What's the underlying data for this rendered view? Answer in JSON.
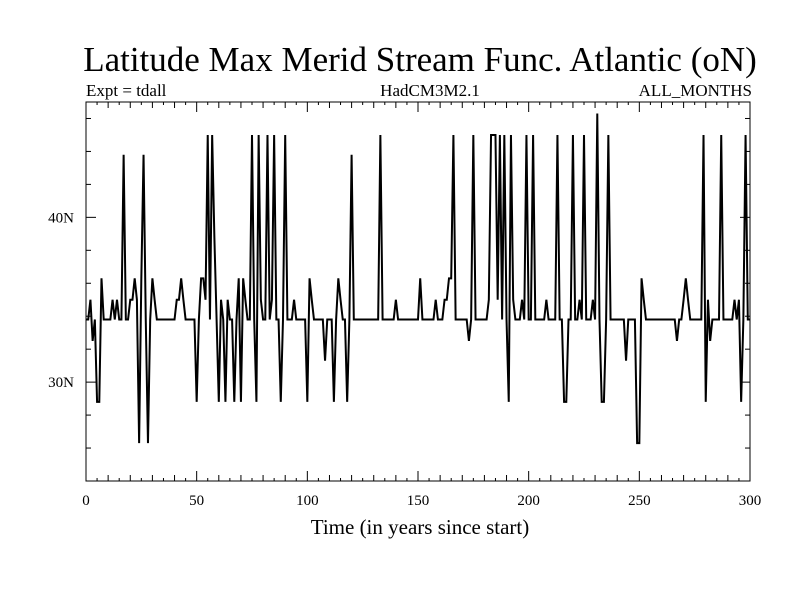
{
  "chart_data": {
    "type": "line",
    "title": "Latitude Max Merid Stream Func. Atlantic (oN)",
    "subtitle_left": "Expt = tdall",
    "subtitle_center": "HadCM3M2.1",
    "subtitle_right": "ALL_MONTHS",
    "xlabel": "Time (in years since start)",
    "ylabel": "",
    "xlim": [
      0,
      300
    ],
    "ylim": [
      24,
      47
    ],
    "x_ticks": [
      0,
      50,
      100,
      150,
      200,
      250,
      300
    ],
    "x_tick_labels": [
      "0",
      "50",
      "100",
      "150",
      "200",
      "250",
      "300"
    ],
    "y_ticks": [
      30,
      40
    ],
    "y_tick_labels": [
      "30N",
      "40N"
    ],
    "grid": false,
    "line_color": "#000000",
    "series": [
      {
        "x": [
          0,
          1,
          2,
          3,
          4,
          5,
          6,
          7,
          8,
          9,
          10,
          11,
          12,
          13,
          14,
          15,
          16,
          17,
          18,
          19,
          20,
          21,
          22,
          23,
          24,
          25,
          26,
          27,
          28,
          29,
          30,
          31,
          32,
          33,
          34,
          35,
          36,
          37,
          38,
          39,
          40,
          41,
          42,
          43,
          44,
          45,
          46,
          47,
          48,
          49,
          50,
          51,
          52,
          53,
          54,
          55,
          56,
          57,
          58,
          59,
          60,
          61,
          62,
          63,
          64,
          65,
          66,
          67,
          68,
          69,
          70,
          71,
          72,
          73,
          74,
          75,
          76,
          77,
          78,
          79,
          80,
          81,
          82,
          83,
          84,
          85,
          86,
          87,
          88,
          89,
          90,
          91,
          92,
          93,
          94,
          95,
          96,
          97,
          98,
          99,
          100,
          101,
          102,
          103,
          104,
          105,
          106,
          107,
          108,
          109,
          110,
          111,
          112,
          113,
          114,
          115,
          116,
          117,
          118,
          119,
          120,
          121,
          122,
          123,
          124,
          125,
          126,
          127,
          128,
          129,
          130,
          131,
          132,
          133,
          134,
          135,
          136,
          137,
          138,
          139,
          140,
          141,
          142,
          143,
          144,
          145,
          146,
          147,
          148,
          149,
          150,
          151,
          152,
          153,
          154,
          155,
          156,
          157,
          158,
          159,
          160,
          161,
          162,
          163,
          164,
          165,
          166,
          167,
          168,
          169,
          170,
          171,
          172,
          173,
          174,
          175,
          176,
          177,
          178,
          179,
          180,
          181,
          182,
          183,
          184,
          185,
          186,
          187,
          188,
          189,
          190,
          191,
          192,
          193,
          194,
          195,
          196,
          197,
          198,
          199,
          200,
          201,
          202,
          203,
          204,
          205,
          206,
          207,
          208,
          209,
          210,
          211,
          212,
          213,
          214,
          215,
          216,
          217,
          218,
          219,
          220,
          221,
          222,
          223,
          224,
          225,
          226,
          227,
          228,
          229,
          230,
          231,
          232,
          233,
          234,
          235,
          236,
          237,
          238,
          239,
          240,
          241,
          242,
          243,
          244,
          245,
          246,
          247,
          248,
          249,
          250,
          251,
          252,
          253,
          254,
          255,
          256,
          257,
          258,
          259,
          260,
          261,
          262,
          263,
          264,
          265,
          266,
          267,
          268,
          269,
          270,
          271,
          272,
          273,
          274,
          275,
          276,
          277,
          278,
          279,
          280,
          281,
          282,
          283,
          284,
          285,
          286,
          287,
          288,
          289,
          290,
          291,
          292,
          293,
          294,
          295,
          296,
          297,
          298,
          299,
          300
        ],
        "y": [
          33.8,
          33.8,
          35.0,
          32.5,
          33.8,
          28.8,
          28.8,
          36.3,
          33.8,
          33.8,
          33.8,
          33.8,
          35.0,
          33.8,
          35.0,
          33.8,
          33.8,
          43.8,
          33.8,
          33.8,
          35.0,
          35.0,
          36.3,
          35.0,
          26.3,
          36.3,
          43.8,
          33.8,
          26.3,
          33.8,
          36.3,
          35.0,
          33.8,
          33.8,
          33.8,
          33.8,
          33.8,
          33.8,
          33.8,
          33.8,
          33.8,
          35.0,
          35.0,
          36.3,
          35.0,
          33.8,
          33.8,
          33.8,
          33.8,
          33.8,
          28.8,
          33.8,
          36.3,
          36.3,
          35.0,
          45.0,
          33.8,
          45.0,
          38.8,
          33.8,
          28.8,
          35.0,
          33.8,
          28.8,
          35.0,
          33.8,
          33.8,
          28.8,
          33.8,
          36.3,
          28.8,
          36.3,
          35.0,
          33.8,
          33.8,
          45.0,
          33.8,
          28.8,
          45.0,
          35.0,
          33.8,
          33.8,
          45.0,
          33.8,
          35.0,
          45.0,
          33.8,
          33.8,
          28.8,
          33.8,
          45.0,
          33.8,
          33.8,
          33.8,
          35.0,
          33.8,
          33.8,
          33.8,
          33.8,
          33.8,
          28.8,
          36.3,
          35.0,
          33.8,
          33.8,
          33.8,
          33.8,
          33.8,
          31.3,
          33.8,
          33.8,
          33.8,
          28.8,
          33.8,
          36.3,
          35.0,
          33.8,
          33.8,
          28.8,
          33.8,
          43.8,
          33.8,
          33.8,
          33.8,
          33.8,
          33.8,
          33.8,
          33.8,
          33.8,
          33.8,
          33.8,
          33.8,
          33.8,
          45.0,
          33.8,
          33.8,
          33.8,
          33.8,
          33.8,
          33.8,
          35.0,
          33.8,
          33.8,
          33.8,
          33.8,
          33.8,
          33.8,
          33.8,
          33.8,
          33.8,
          33.8,
          36.3,
          33.8,
          33.8,
          33.8,
          33.8,
          33.8,
          33.8,
          35.0,
          33.8,
          33.8,
          33.8,
          35.0,
          35.0,
          36.3,
          36.3,
          45.0,
          33.8,
          33.8,
          33.8,
          33.8,
          33.8,
          33.8,
          32.5,
          33.8,
          45.0,
          33.8,
          33.8,
          33.8,
          33.8,
          33.8,
          33.8,
          35.0,
          45.0,
          45.0,
          45.0,
          35.0,
          45.0,
          33.8,
          45.0,
          33.8,
          28.8,
          45.0,
          35.0,
          33.8,
          33.8,
          33.8,
          35.0,
          33.8,
          45.0,
          33.8,
          33.8,
          45.0,
          33.8,
          33.8,
          33.8,
          33.8,
          33.8,
          35.0,
          33.8,
          33.8,
          33.8,
          33.8,
          45.0,
          33.8,
          33.8,
          28.8,
          28.8,
          33.8,
          33.8,
          45.0,
          33.8,
          33.8,
          35.0,
          33.8,
          45.0,
          33.8,
          33.8,
          33.8,
          35.0,
          33.8,
          46.3,
          33.8,
          28.8,
          28.8,
          33.8,
          45.0,
          33.8,
          33.8,
          33.8,
          33.8,
          33.8,
          33.8,
          33.8,
          31.3,
          33.8,
          33.8,
          33.8,
          33.8,
          26.3,
          26.3,
          36.3,
          35.0,
          33.8,
          33.8,
          33.8,
          33.8,
          33.8,
          33.8,
          33.8,
          33.8,
          33.8,
          33.8,
          33.8,
          33.8,
          33.8,
          33.8,
          32.5,
          33.8,
          33.8,
          35.0,
          36.3,
          35.0,
          33.8,
          33.8,
          33.8,
          33.8,
          33.8,
          33.8,
          45.0,
          28.8,
          35.0,
          32.5,
          33.8,
          33.8,
          33.8,
          33.8,
          45.0,
          33.8,
          33.8,
          33.8,
          33.8,
          33.8,
          35.0,
          33.8,
          35.0,
          28.8,
          33.8,
          45.0,
          33.8,
          33.8
        ]
      }
    ]
  }
}
